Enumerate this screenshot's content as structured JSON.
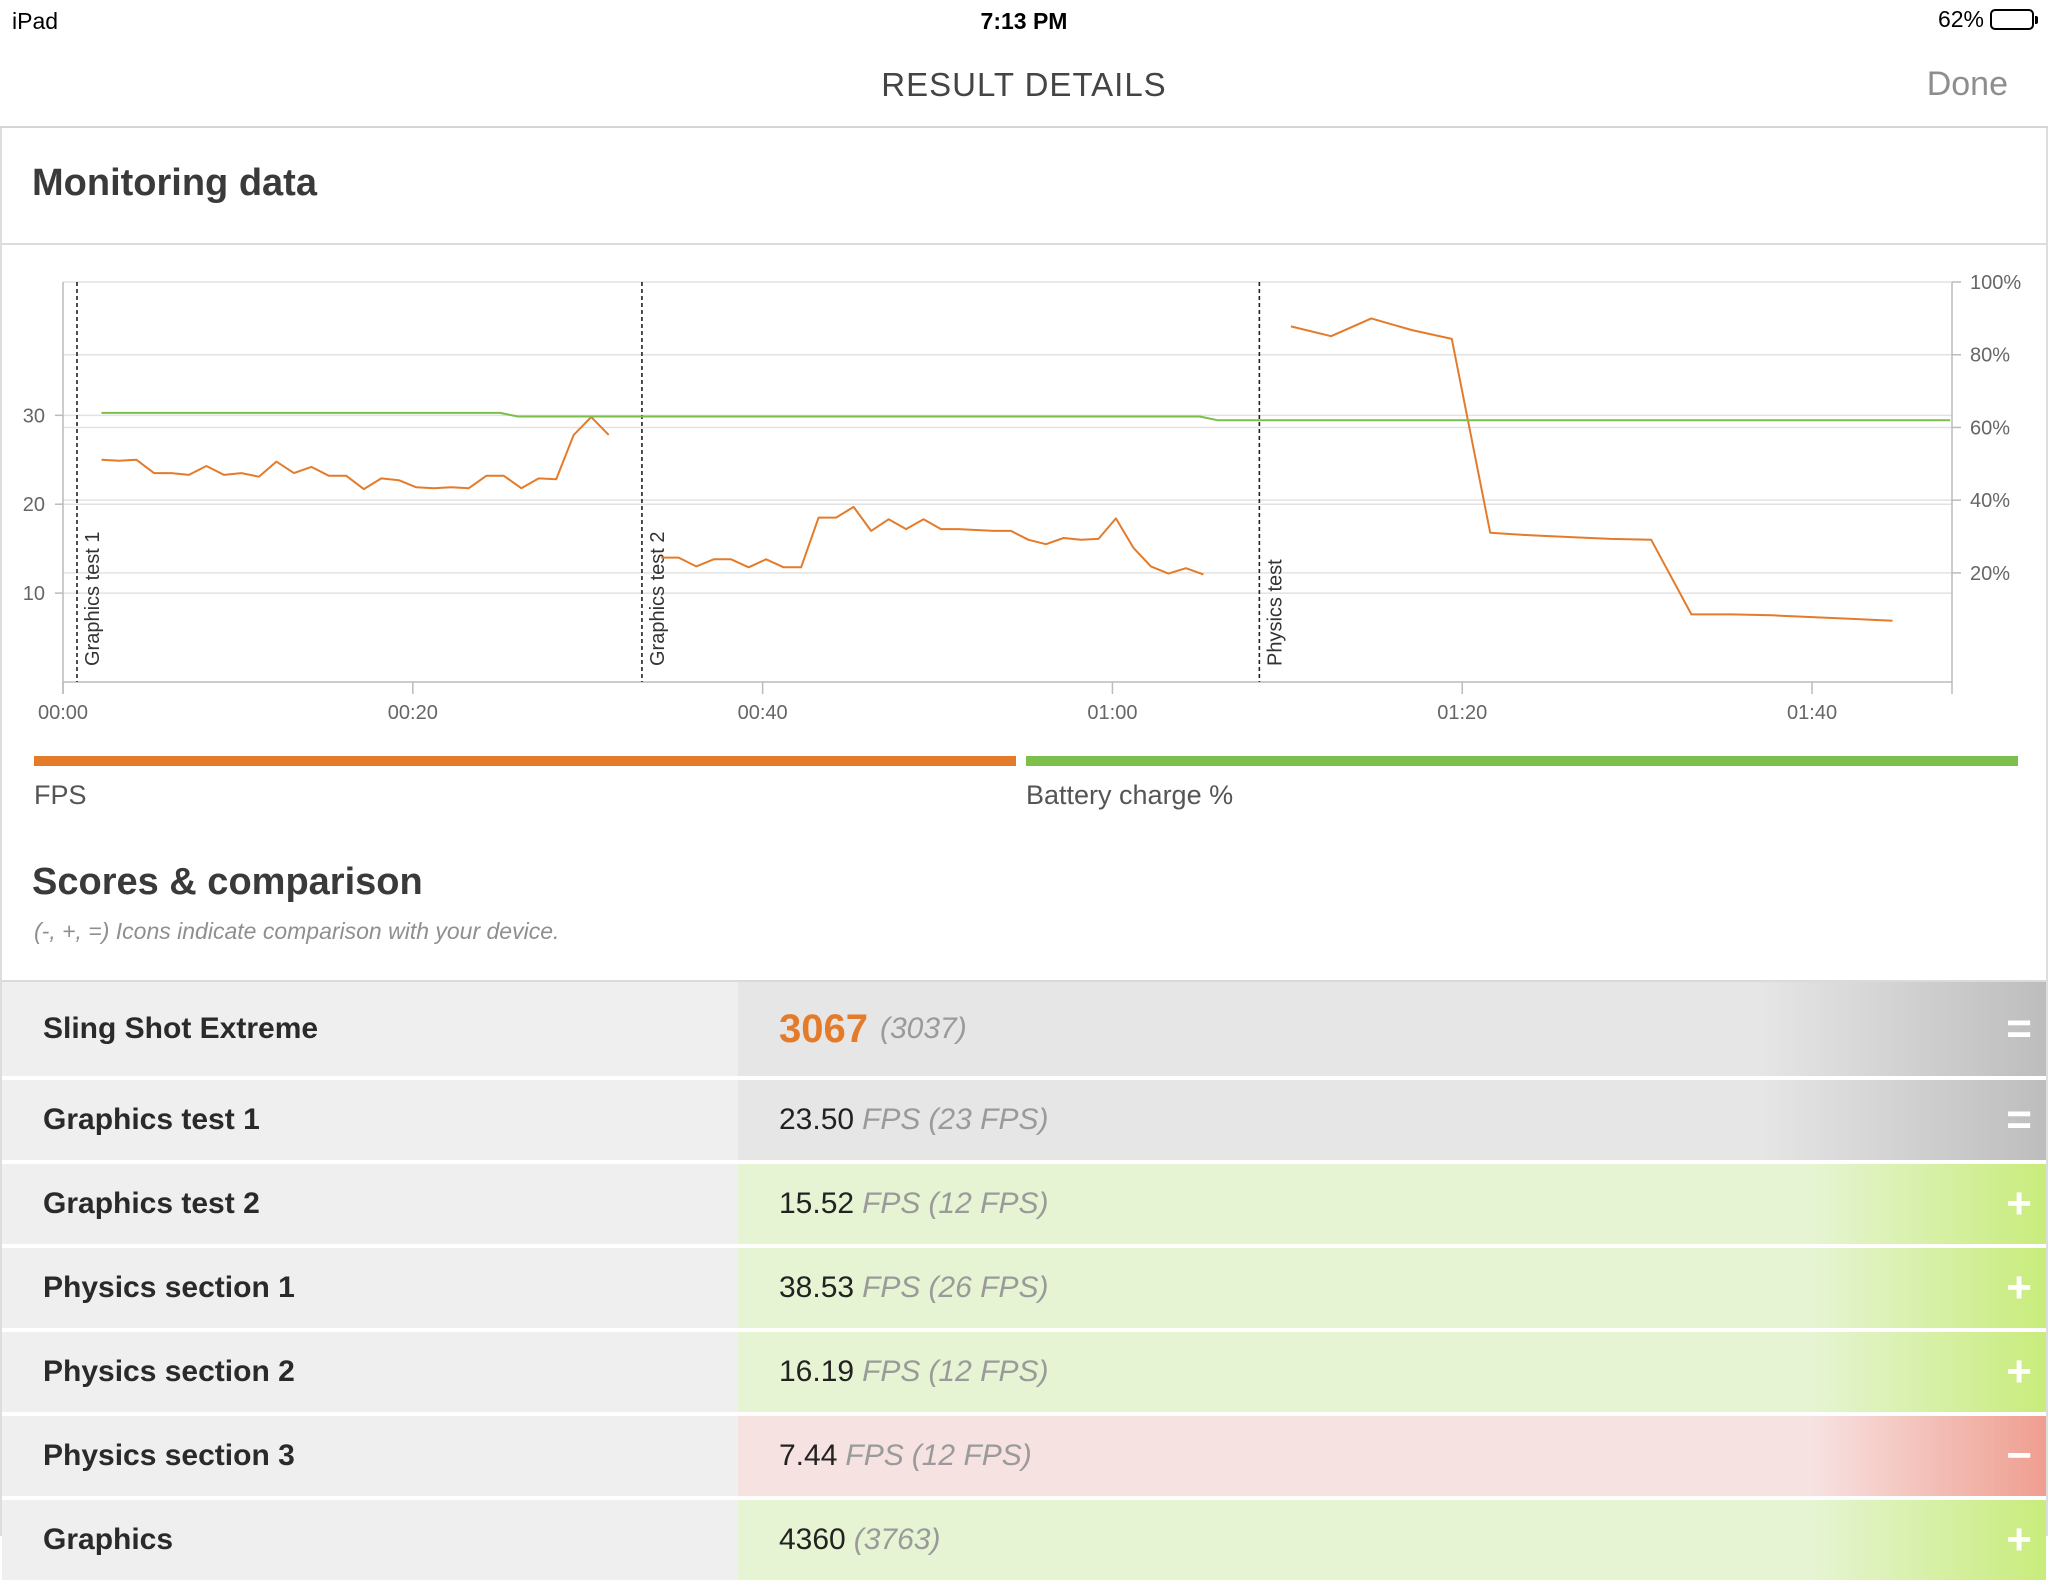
{
  "status_bar": {
    "device": "iPad",
    "time": "7:13 PM",
    "battery": "62%",
    "battery_level": 0.62
  },
  "nav": {
    "title": "RESULT DETAILS",
    "done_label": "Done"
  },
  "monitoring": {
    "title": "Monitoring data"
  },
  "chart_data": {
    "type": "line",
    "x_ticks": [
      "00:00",
      "00:20",
      "00:40",
      "01:00",
      "01:20",
      "01:40"
    ],
    "xlim": [
      0,
      108
    ],
    "left_axis": {
      "ticks": [
        "10",
        "20",
        "30"
      ],
      "tick_values": [
        10,
        20,
        30
      ],
      "ylim": [
        0,
        45
      ]
    },
    "right_axis": {
      "ticks": [
        "20%",
        "40%",
        "60%",
        "80%",
        "100%"
      ],
      "tick_values": [
        20,
        40,
        60,
        80,
        100
      ],
      "ylim": [
        -10,
        100
      ]
    },
    "grid": true,
    "markers": [
      {
        "label": "Graphics test 1",
        "x": 0.8
      },
      {
        "label": "Graphics test 2",
        "x": 33.1
      },
      {
        "label": "Physics test",
        "x": 68.4
      }
    ],
    "series": [
      {
        "name": "FPS",
        "color": "#e47b2b",
        "axis": "left",
        "segments": [
          [
            [
              2.2,
              25.0
            ],
            [
              3.2,
              24.9
            ],
            [
              4.2,
              25.0
            ],
            [
              5.2,
              23.5
            ],
            [
              6.2,
              23.5
            ],
            [
              7.2,
              23.3
            ],
            [
              8.2,
              24.3
            ],
            [
              9.2,
              23.3
            ],
            [
              10.2,
              23.5
            ],
            [
              11.2,
              23.1
            ],
            [
              12.2,
              24.8
            ],
            [
              13.2,
              23.5
            ],
            [
              14.2,
              24.2
            ],
            [
              15.2,
              23.2
            ],
            [
              16.2,
              23.2
            ],
            [
              17.2,
              21.7
            ],
            [
              18.2,
              22.9
            ],
            [
              19.2,
              22.7
            ],
            [
              20.2,
              21.9
            ],
            [
              21.2,
              21.8
            ],
            [
              22.2,
              21.9
            ],
            [
              23.2,
              21.8
            ],
            [
              24.2,
              23.2
            ],
            [
              25.2,
              23.2
            ],
            [
              26.2,
              21.8
            ],
            [
              27.2,
              22.9
            ],
            [
              28.2,
              22.8
            ],
            [
              29.2,
              27.8
            ],
            [
              30.2,
              29.8
            ],
            [
              31.2,
              27.8
            ]
          ],
          [
            [
              34.2,
              14.0
            ],
            [
              35.2,
              14.0
            ],
            [
              36.2,
              13.0
            ],
            [
              37.2,
              13.8
            ],
            [
              38.2,
              13.8
            ],
            [
              39.2,
              12.9
            ],
            [
              40.2,
              13.8
            ],
            [
              41.2,
              12.9
            ],
            [
              42.2,
              12.9
            ],
            [
              43.2,
              18.5
            ],
            [
              44.2,
              18.5
            ],
            [
              45.2,
              19.7
            ],
            [
              46.2,
              17.0
            ],
            [
              47.2,
              18.3
            ],
            [
              48.2,
              17.2
            ],
            [
              49.2,
              18.3
            ],
            [
              50.2,
              17.2
            ],
            [
              51.2,
              17.2
            ],
            [
              52.2,
              17.1
            ],
            [
              53.2,
              17.0
            ],
            [
              54.2,
              17.0
            ],
            [
              55.2,
              16.0
            ],
            [
              56.2,
              15.5
            ],
            [
              57.2,
              16.2
            ],
            [
              58.2,
              16.0
            ],
            [
              59.2,
              16.1
            ],
            [
              60.2,
              18.4
            ],
            [
              61.2,
              15.1
            ],
            [
              62.2,
              13.0
            ],
            [
              63.2,
              12.2
            ],
            [
              64.2,
              12.8
            ],
            [
              65.2,
              12.1
            ]
          ],
          [
            [
              70.2,
              40.0
            ],
            [
              72.5,
              38.9
            ],
            [
              74.8,
              40.9
            ],
            [
              77.1,
              39.6
            ],
            [
              79.4,
              38.6
            ],
            [
              81.6,
              16.8
            ],
            [
              83.9,
              16.5
            ],
            [
              86.2,
              16.3
            ],
            [
              88.5,
              16.1
            ],
            [
              90.8,
              16.0
            ],
            [
              93.1,
              7.6
            ],
            [
              95.4,
              7.6
            ],
            [
              97.7,
              7.5
            ],
            [
              100.0,
              7.3
            ],
            [
              102.3,
              7.1
            ],
            [
              104.6,
              6.9
            ]
          ]
        ]
      },
      {
        "name": "Battery charge %",
        "color": "#7cbf4a",
        "axis": "right",
        "points": [
          [
            2.2,
            64
          ],
          [
            25.0,
            64
          ],
          [
            26.0,
            63
          ],
          [
            65.0,
            63
          ],
          [
            66.0,
            62
          ],
          [
            107.9,
            62
          ]
        ]
      }
    ]
  },
  "legend": {
    "fps_label": "FPS",
    "fps_color": "#e47b2b",
    "battery_label": "Battery charge %",
    "battery_color": "#7cbf4a"
  },
  "scores": {
    "title": "Scores & comparison",
    "note": "(-, +, =) Icons indicate comparison with your device.",
    "rows": [
      {
        "name": "Sling Shot Extreme",
        "value": "3067",
        "comparison": "(3037)",
        "icon": "=",
        "kind": "equal"
      },
      {
        "name": "Graphics test 1",
        "value": "23.50",
        "unit": "FPS",
        "comparison": "(23 FPS)",
        "icon": "=",
        "kind": "equal"
      },
      {
        "name": "Graphics test 2",
        "value": "15.52",
        "unit": "FPS",
        "comparison": "(12 FPS)",
        "icon": "+",
        "kind": "plus"
      },
      {
        "name": "Physics section 1",
        "value": "38.53",
        "unit": "FPS",
        "comparison": "(26 FPS)",
        "icon": "+",
        "kind": "plus"
      },
      {
        "name": "Physics section 2",
        "value": "16.19",
        "unit": "FPS",
        "comparison": "(12 FPS)",
        "icon": "+",
        "kind": "plus"
      },
      {
        "name": "Physics section 3",
        "value": "7.44",
        "unit": "FPS",
        "comparison": "(12 FPS)",
        "icon": "−",
        "kind": "minus"
      },
      {
        "name": "Graphics",
        "value": "4360",
        "comparison": "(3763)",
        "icon": "+",
        "kind": "plus"
      }
    ]
  }
}
